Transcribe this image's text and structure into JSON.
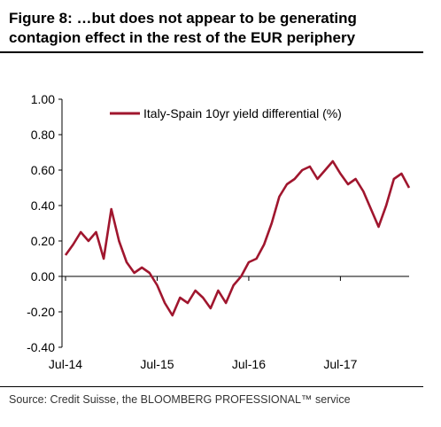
{
  "header": {
    "title": "Figure 8: …but does not appear to be generating contagion effect in the rest of the EUR periphery"
  },
  "footer": {
    "source": "Source: Credit Suisse, the BLOOMBERG PROFESSIONAL™ service"
  },
  "colors": {
    "series": "#a0162e",
    "axis": "#000000"
  },
  "chart_data": {
    "type": "line",
    "title": "",
    "xlabel": "",
    "ylabel": "",
    "ylim": [
      -0.4,
      1.0
    ],
    "yticks": [
      1.0,
      0.8,
      0.6,
      0.4,
      0.2,
      0.0,
      -0.2,
      -0.4
    ],
    "ytick_labels": [
      "1.00",
      "0.80",
      "0.60",
      "0.40",
      "0.20",
      "0.00",
      "-0.20",
      "-0.40"
    ],
    "xlim": [
      "2014-07",
      "2018-04"
    ],
    "xticks": [
      "2014-07",
      "2015-07",
      "2016-07",
      "2017-07"
    ],
    "xtick_labels": [
      "Jul-14",
      "Jul-15",
      "Jul-16",
      "Jul-17"
    ],
    "grid": false,
    "legend": "top-right",
    "series": [
      {
        "name": "Italy-Spain 10yr yield differential (%)",
        "x": [
          "2014-07",
          "2014-08",
          "2014-09",
          "2014-10",
          "2014-11",
          "2014-12",
          "2015-01",
          "2015-02",
          "2015-03",
          "2015-04",
          "2015-05",
          "2015-06",
          "2015-07",
          "2015-08",
          "2015-09",
          "2015-10",
          "2015-11",
          "2015-12",
          "2016-01",
          "2016-02",
          "2016-03",
          "2016-04",
          "2016-05",
          "2016-06",
          "2016-07",
          "2016-08",
          "2016-09",
          "2016-10",
          "2016-11",
          "2016-12",
          "2017-01",
          "2017-02",
          "2017-03",
          "2017-04",
          "2017-05",
          "2017-06",
          "2017-07",
          "2017-08",
          "2017-09",
          "2017-10",
          "2017-11",
          "2017-12",
          "2018-01",
          "2018-02",
          "2018-03",
          "2018-04"
        ],
        "values": [
          0.12,
          0.18,
          0.25,
          0.2,
          0.25,
          0.1,
          0.38,
          0.2,
          0.08,
          0.02,
          0.05,
          0.02,
          -0.05,
          -0.15,
          -0.22,
          -0.12,
          -0.15,
          -0.08,
          -0.12,
          -0.18,
          -0.08,
          -0.15,
          -0.05,
          0.0,
          0.08,
          0.1,
          0.18,
          0.3,
          0.45,
          0.52,
          0.55,
          0.6,
          0.62,
          0.55,
          0.6,
          0.65,
          0.58,
          0.52,
          0.55,
          0.48,
          0.38,
          0.28,
          0.4,
          0.55,
          0.58,
          0.5
        ]
      }
    ]
  }
}
